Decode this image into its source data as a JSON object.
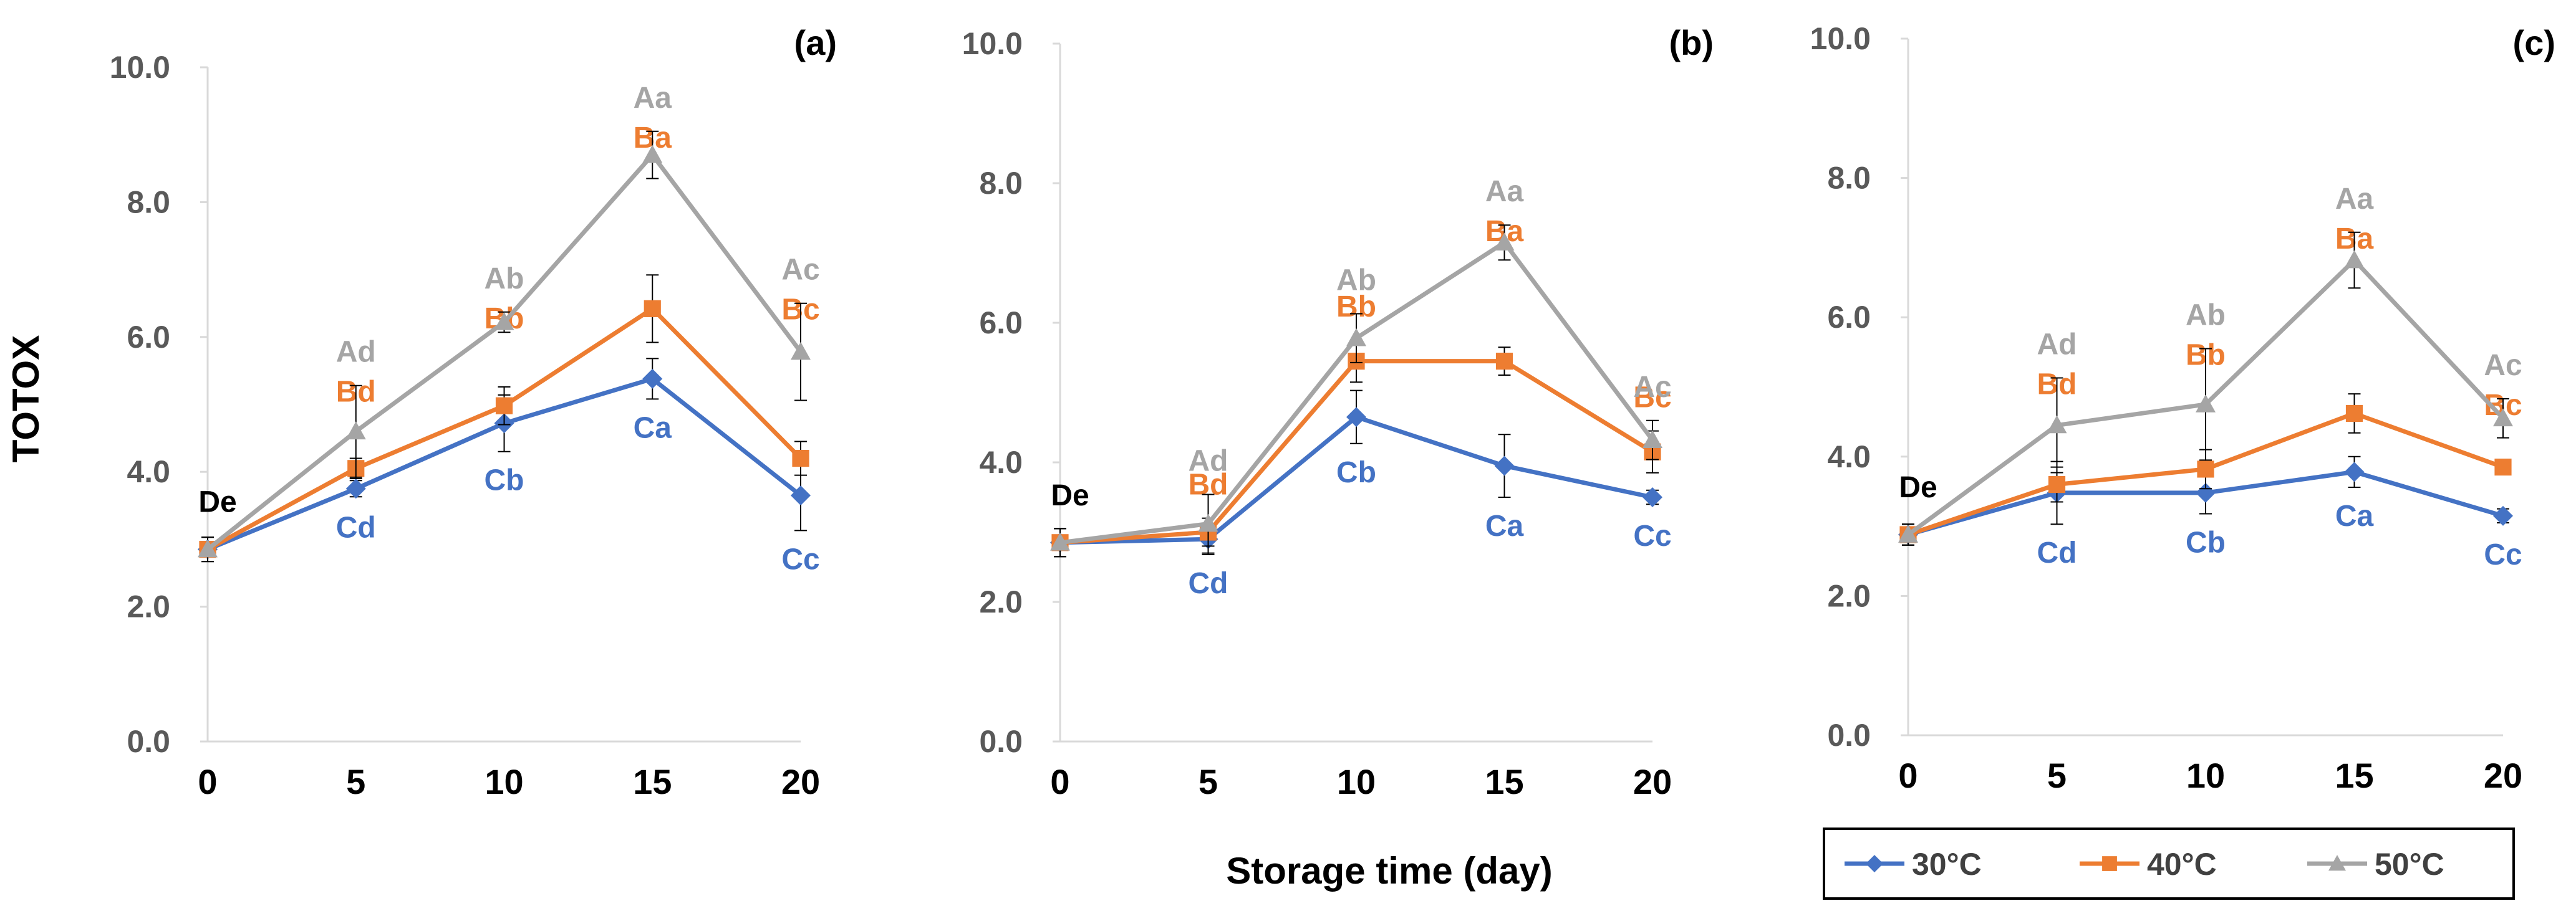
{
  "figure": {
    "ylabel": "TOTOX",
    "xlabel": "Storage time (day)",
    "colors": {
      "30°C": "#4472C4",
      "40°C": "#ED7D31",
      "50°C": "#A5A5A5"
    },
    "legend": [
      {
        "name": "30°C",
        "marker": "diamond",
        "color": "#4472C4"
      },
      {
        "name": "40°C",
        "marker": "square",
        "color": "#ED7D31"
      },
      {
        "name": "50°C",
        "marker": "triangle",
        "color": "#A5A5A5"
      }
    ]
  },
  "chart_data": [
    {
      "type": "line",
      "panel": "(a)",
      "x": [
        0,
        5,
        10,
        15,
        20
      ],
      "ylim": [
        0,
        10
      ],
      "yticks": [
        "0.0",
        "2.0",
        "4.0",
        "6.0",
        "8.0",
        "10.0"
      ],
      "xticks": [
        "0",
        "5",
        "10",
        "15",
        "20"
      ],
      "series": [
        {
          "name": "30°C",
          "color": "#4472C4",
          "marker": "diamond",
          "values": [
            2.85,
            3.75,
            4.72,
            5.38,
            3.65
          ],
          "errors": [
            0.18,
            0.12,
            0.42,
            0.3,
            0.52
          ],
          "labels": [
            "",
            "Cd",
            "Cb",
            "Ca",
            "Cc"
          ]
        },
        {
          "name": "40°C",
          "color": "#ED7D31",
          "marker": "square",
          "values": [
            2.85,
            4.05,
            4.98,
            6.42,
            4.2
          ],
          "errors": [
            0.18,
            0.15,
            0.28,
            0.5,
            0.25
          ],
          "labels": [
            "",
            "Bd",
            "Bb",
            "Ba",
            "Bc"
          ]
        },
        {
          "name": "50°C",
          "color": "#A5A5A5",
          "marker": "triangle",
          "values": [
            2.85,
            4.6,
            6.22,
            8.7,
            5.78
          ],
          "errors": [
            0.18,
            0.68,
            0.15,
            0.35,
            0.72
          ],
          "labels": [
            "De",
            "Ad",
            "Ab",
            "Aa",
            "Ac"
          ]
        }
      ]
    },
    {
      "type": "line",
      "panel": "(b)",
      "x": [
        0,
        5,
        10,
        15,
        20
      ],
      "ylim": [
        0,
        10
      ],
      "yticks": [
        "0.0",
        "2.0",
        "4.0",
        "6.0",
        "8.0",
        "10.0"
      ],
      "xticks": [
        "0",
        "5",
        "10",
        "15",
        "20"
      ],
      "series": [
        {
          "name": "30°C",
          "color": "#4472C4",
          "marker": "diamond",
          "values": [
            2.85,
            2.9,
            4.65,
            3.95,
            3.5
          ],
          "errors": [
            0.2,
            0.22,
            0.38,
            0.45,
            0.1
          ],
          "labels": [
            "",
            "Cd",
            "Cb",
            "Ca",
            "Cc"
          ]
        },
        {
          "name": "40°C",
          "color": "#ED7D31",
          "marker": "square",
          "values": [
            2.85,
            3.0,
            5.45,
            5.45,
            4.15
          ],
          "errors": [
            0.2,
            0.2,
            0.3,
            0.2,
            0.3
          ],
          "labels": [
            "",
            "Bd",
            "Bb",
            "Ba",
            "Bc"
          ]
        },
        {
          "name": "50°C",
          "color": "#A5A5A5",
          "marker": "triangle",
          "values": [
            2.85,
            3.12,
            5.78,
            7.15,
            4.32
          ],
          "errors": [
            0.2,
            0.42,
            0.35,
            0.25,
            0.28
          ],
          "labels": [
            "De",
            "Ad",
            "Ab",
            "Aa",
            "Ac"
          ]
        }
      ]
    },
    {
      "type": "line",
      "panel": "(c)",
      "x": [
        0,
        5,
        10,
        15,
        20
      ],
      "ylim": [
        0,
        10
      ],
      "yticks": [
        "0.0",
        "2.0",
        "4.0",
        "6.0",
        "8.0",
        "10.0"
      ],
      "xticks": [
        "0",
        "5",
        "10",
        "15",
        "20"
      ],
      "series": [
        {
          "name": "30°C",
          "color": "#4472C4",
          "marker": "diamond",
          "values": [
            2.88,
            3.48,
            3.48,
            3.78,
            3.15
          ],
          "errors": [
            0.15,
            0.45,
            0.3,
            0.22,
            0.1
          ],
          "labels": [
            "",
            "Cd",
            "Cb",
            "Ca",
            "Cc"
          ]
        },
        {
          "name": "40°C",
          "color": "#ED7D31",
          "marker": "square",
          "values": [
            2.88,
            3.6,
            3.82,
            4.62,
            3.85
          ],
          "errors": [
            0.15,
            0.25,
            0.28,
            0.28,
            0.1
          ],
          "labels": [
            "",
            "Bd",
            "Bb",
            "Ba",
            "Bc"
          ]
        },
        {
          "name": "50°C",
          "color": "#A5A5A5",
          "marker": "triangle",
          "values": [
            2.88,
            4.45,
            4.75,
            6.82,
            4.55
          ],
          "errors": [
            0.15,
            0.68,
            0.8,
            0.4,
            0.28
          ],
          "labels": [
            "De",
            "Ad",
            "Ab",
            "Aa",
            "Ac"
          ]
        }
      ]
    }
  ]
}
